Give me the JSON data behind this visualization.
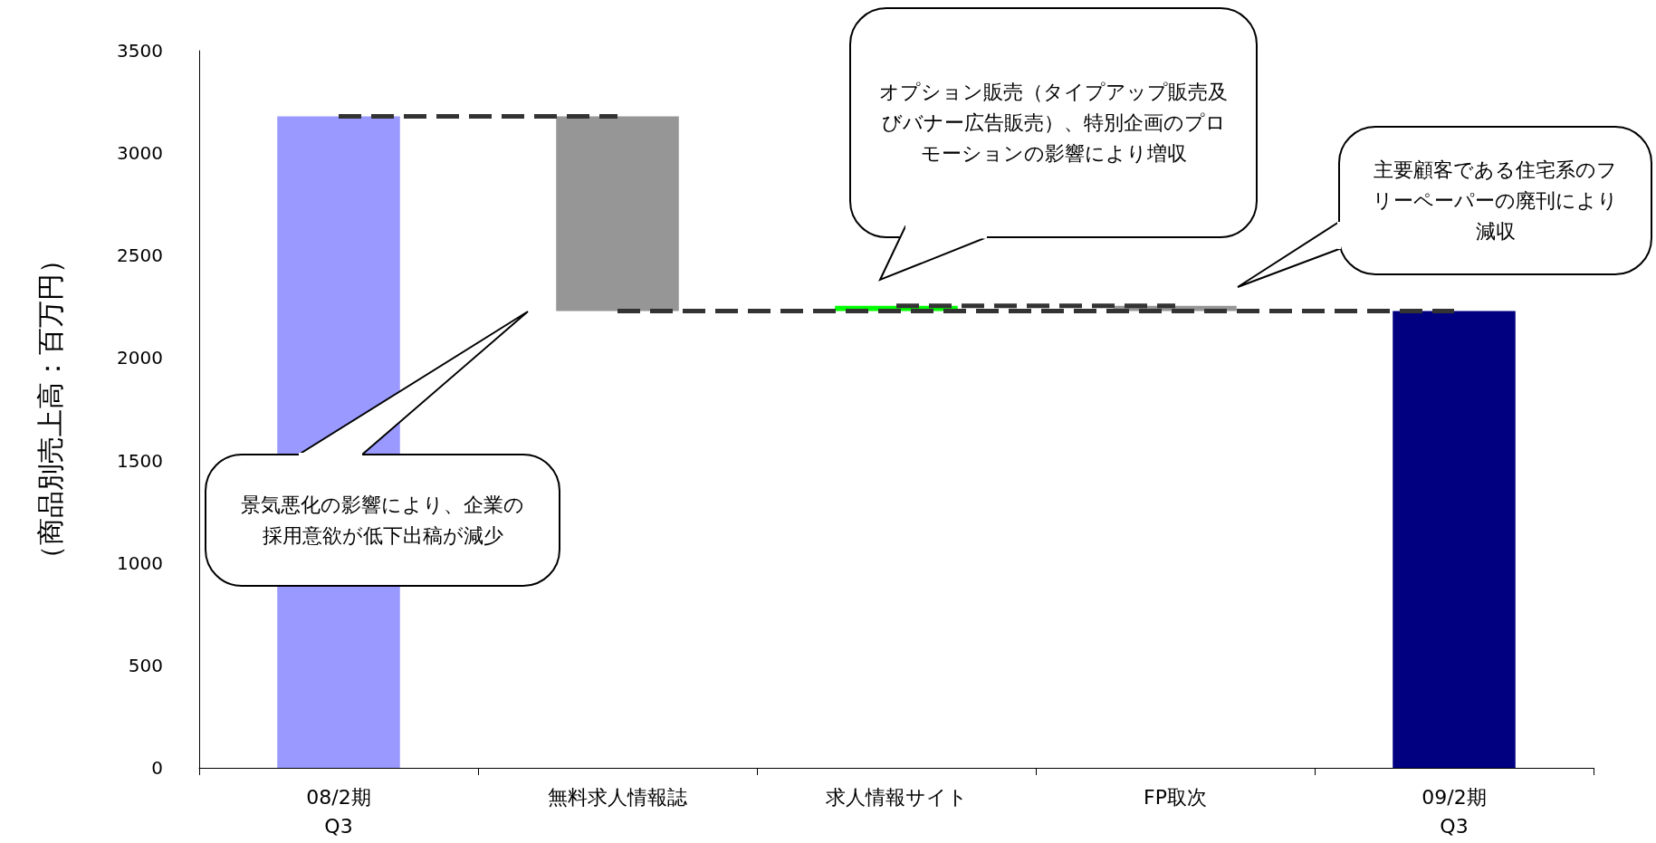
{
  "chart_data": {
    "type": "bar",
    "ylabel": "（商品別売上高：百万円）",
    "categories": [
      "08/2期\nQ3",
      "無料求人情報誌",
      "求人情報サイト",
      "FP取次",
      "09/2期\nQ3"
    ],
    "series": [
      {
        "values": [
          3180,
          950,
          25,
          25,
          2230
        ],
        "base": [
          0,
          2230,
          2230,
          2230,
          0
        ],
        "colors": [
          "#9999ff",
          "#969696",
          "#00ff00",
          "#969696",
          "#000080"
        ]
      },
      {
        "type": "line",
        "color": "#333333",
        "line_style": "dashed",
        "marker": "none",
        "values": [
          3180,
          3180,
          null,
          null,
          null
        ]
      },
      {
        "type": "line",
        "color": "#333333",
        "line_style": "dashed",
        "marker": "none",
        "values": [
          null,
          null,
          2255,
          2255,
          null
        ]
      },
      {
        "type": "line",
        "color": "#333333",
        "line_style": "dashed",
        "marker": "none",
        "values": [
          null,
          2230,
          2230,
          2230,
          2230
        ]
      }
    ],
    "ylim": [
      0,
      3500
    ],
    "yticks": [
      0,
      500,
      1000,
      1500,
      2000,
      2500,
      3000,
      3500
    ],
    "grid": false,
    "annotations": [
      "景気悪化の影響により、企業の採用意欲が低下出稿が減少",
      "オプション販売（タイプアップ販売及びバナー広告販売）、特別企画のプロモーションの影響により増収",
      "主要顧客である住宅系のフリーペーパーの廃刊により減収"
    ]
  }
}
